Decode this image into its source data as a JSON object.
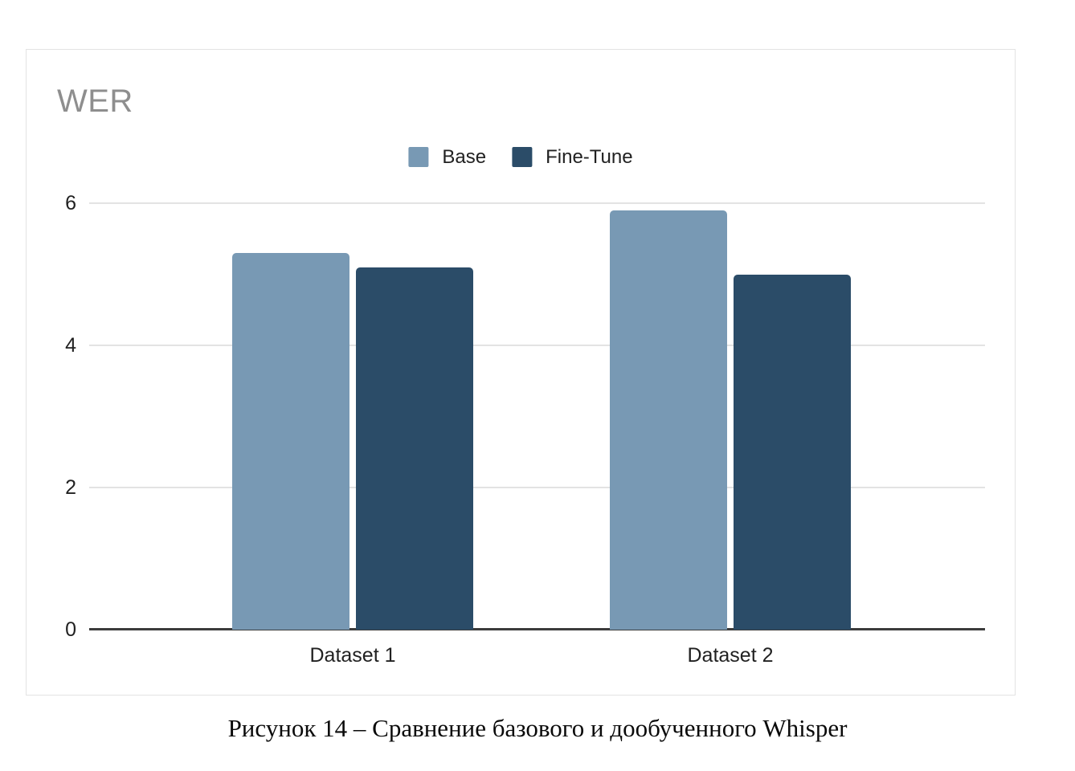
{
  "chart": {
    "title": "WER",
    "title_color": "#8e8e8e"
  },
  "caption": "Рисунок 14 – Сравнение базового и дообученного Whisper",
  "chart_data": {
    "type": "bar",
    "title": "WER",
    "categories": [
      "Dataset 1",
      "Dataset 2"
    ],
    "series": [
      {
        "name": "Base",
        "color": "#7899b4",
        "values": [
          5.3,
          5.9
        ]
      },
      {
        "name": "Fine-Tune",
        "color": "#2b4c68",
        "values": [
          5.1,
          5.0
        ]
      }
    ],
    "xlabel": "",
    "ylabel": "",
    "ylim": [
      0,
      6
    ],
    "yticks": [
      0,
      2,
      4,
      6
    ],
    "grid": true,
    "legend_position": "top",
    "colors": {
      "gridline": "#e3e3e3",
      "baseline": "#3c3c3c",
      "tick_text": "#212121",
      "card_border": "#e3e3e3"
    }
  }
}
